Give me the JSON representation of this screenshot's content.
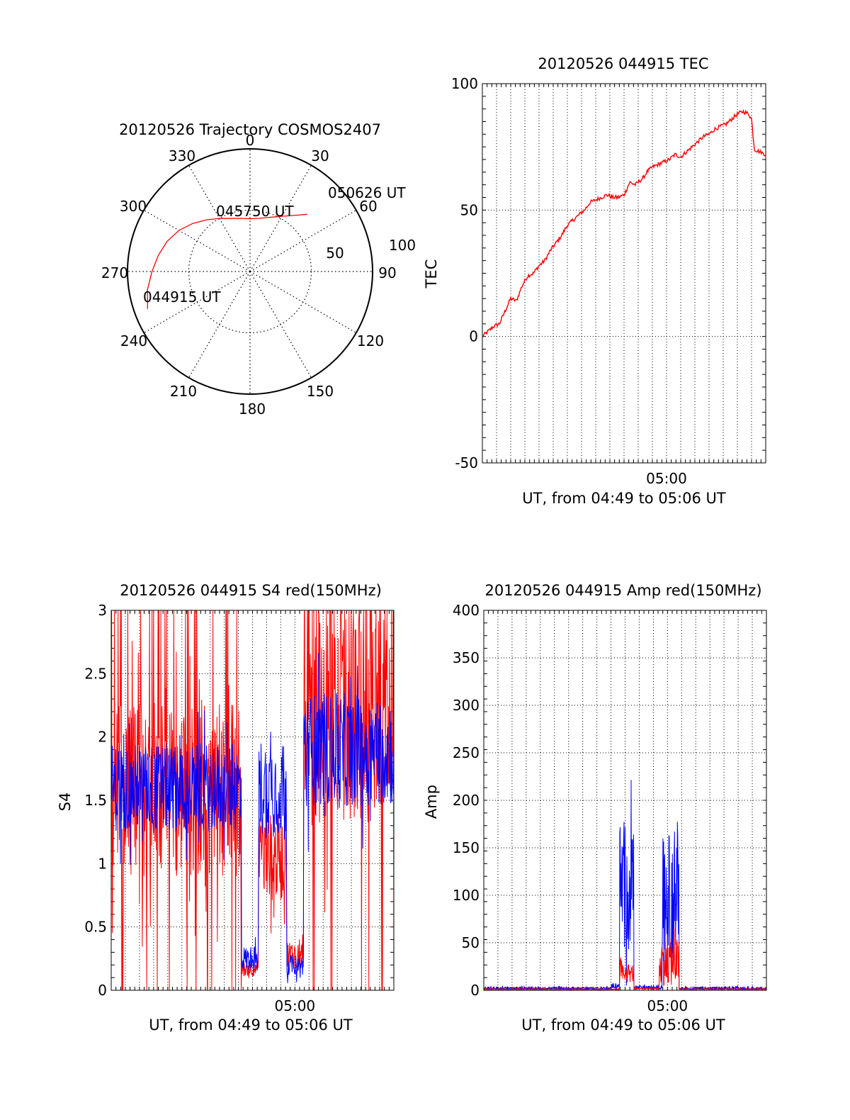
{
  "colors": {
    "red": "#ff0000",
    "blue": "#0000ff",
    "axis": "#000000",
    "grid": "#000000"
  },
  "chart_data": [
    {
      "id": "polar",
      "type": "scatter",
      "title": "20120526 Trajectory COSMOS2407",
      "azimuth_labels": [
        "0",
        "30",
        "60",
        "90",
        "120",
        "150",
        "180",
        "210",
        "240",
        "270",
        "300",
        "330"
      ],
      "radial_labels": [
        "50",
        "100"
      ],
      "rlim": [
        0,
        100
      ],
      "grid": true,
      "track": {
        "color": "red",
        "points": [
          [
            250,
            89
          ],
          [
            260,
            85
          ],
          [
            270,
            80
          ],
          [
            280,
            76
          ],
          [
            290,
            72
          ],
          [
            300,
            67
          ],
          [
            310,
            61
          ],
          [
            320,
            55
          ],
          [
            330,
            50
          ],
          [
            340,
            46
          ],
          [
            350,
            44
          ],
          [
            0,
            43
          ],
          [
            10,
            44
          ],
          [
            20,
            47
          ],
          [
            30,
            52
          ],
          [
            40,
            60
          ],
          [
            45,
            66
          ]
        ]
      },
      "annotations": [
        {
          "text": "050626 UT",
          "az": 45,
          "r": 66
        },
        {
          "text": "045750 UT",
          "az": 0,
          "r": 43
        },
        {
          "text": "044915 UT",
          "az": 250,
          "r": 89
        }
      ]
    },
    {
      "id": "tec",
      "type": "line",
      "title": "20120526 044915 TEC",
      "xlabel": "UT, from 04:49 to 05:06 UT",
      "ylabel": "TEC",
      "x_tick_label": "05:00",
      "x_tick_at_fraction": 0.65,
      "ylim": [
        -50,
        100
      ],
      "yticks": [
        "-50",
        "0",
        "50",
        "100"
      ],
      "grid": true,
      "series": [
        {
          "color": "red",
          "x": [
            0,
            0.02,
            0.04,
            0.06,
            0.08,
            0.1,
            0.12,
            0.14,
            0.16,
            0.18,
            0.2,
            0.22,
            0.24,
            0.26,
            0.28,
            0.3,
            0.32,
            0.34,
            0.36,
            0.38,
            0.4,
            0.42,
            0.44,
            0.46,
            0.48,
            0.5,
            0.52,
            0.54,
            0.56,
            0.57,
            0.58,
            0.6,
            0.62,
            0.64,
            0.66,
            0.68,
            0.7,
            0.72,
            0.74,
            0.76,
            0.78,
            0.8,
            0.82,
            0.84,
            0.86,
            0.88,
            0.9,
            0.92,
            0.94,
            0.95,
            0.96,
            0.98,
            1.0
          ],
          "y": [
            0,
            2,
            4,
            5,
            10,
            15,
            14,
            20,
            24,
            25,
            28,
            30,
            34,
            37,
            40,
            44,
            46,
            48,
            50,
            53,
            54,
            55,
            56,
            55,
            55,
            56,
            61,
            60,
            62,
            63,
            65,
            67,
            68,
            69,
            70,
            72,
            71,
            73,
            75,
            77,
            79,
            80,
            82,
            83,
            84,
            86,
            88,
            89,
            88,
            86,
            74,
            73,
            72
          ]
        }
      ]
    },
    {
      "id": "s4",
      "type": "line",
      "title": "20120526 044915 S4 red(150MHz)",
      "xlabel": "UT, from 04:49 to 05:06 UT",
      "ylabel": "S4",
      "x_tick_label": "05:00",
      "x_tick_at_fraction": 0.65,
      "ylim": [
        0,
        3
      ],
      "yticks": [
        "0",
        "0.5",
        "1",
        "1.5",
        "2",
        "2.5",
        "3"
      ],
      "grid": true,
      "series": [
        {
          "color": "red",
          "segments": [
            {
              "x": [
                0,
                0.46
              ],
              "mean": 1.6,
              "amp": 0.7,
              "dropouts": true
            },
            {
              "x": [
                0.46,
                0.52
              ],
              "mean": 0.17,
              "amp": 0.06,
              "dropouts": false
            },
            {
              "x": [
                0.52,
                0.62
              ],
              "mean": 1.05,
              "amp": 0.35,
              "dropouts": false
            },
            {
              "x": [
                0.62,
                0.68
              ],
              "mean": 0.28,
              "amp": 0.12,
              "dropouts": false
            },
            {
              "x": [
                0.68,
                1.0
              ],
              "mean": 2.2,
              "amp": 0.9,
              "dropouts": true
            }
          ]
        },
        {
          "color": "blue",
          "segments": [
            {
              "x": [
                0,
                0.46
              ],
              "mean": 1.6,
              "amp": 0.35,
              "dropouts": false
            },
            {
              "x": [
                0.46,
                0.52
              ],
              "mean": 0.25,
              "amp": 0.1,
              "dropouts": false
            },
            {
              "x": [
                0.52,
                0.62
              ],
              "mean": 1.6,
              "amp": 0.4,
              "dropouts": false
            },
            {
              "x": [
                0.62,
                0.68
              ],
              "mean": 0.2,
              "amp": 0.08,
              "dropouts": false
            },
            {
              "x": [
                0.68,
                1.0
              ],
              "mean": 1.9,
              "amp": 0.45,
              "dropouts": false
            }
          ]
        }
      ]
    },
    {
      "id": "amp",
      "type": "line",
      "title": "20120526 044915 Amp red(150MHz)",
      "xlabel": "UT, from 04:49 to 05:06 UT",
      "ylabel": "Amp",
      "x_tick_label": "05:00",
      "x_tick_at_fraction": 0.65,
      "ylim": [
        0,
        400
      ],
      "yticks": [
        "0",
        "50",
        "100",
        "150",
        "200",
        "250",
        "300",
        "350",
        "400"
      ],
      "grid": true,
      "series": [
        {
          "color": "blue",
          "segments": [
            {
              "x": [
                0,
                0.45
              ],
              "mean": 2,
              "amp": 1.5
            },
            {
              "x": [
                0.45,
                0.48
              ],
              "mean": 5,
              "amp": 3
            },
            {
              "x": [
                0.48,
                0.53
              ],
              "mean": 110,
              "amp": 70
            },
            {
              "x": [
                0.53,
                0.63
              ],
              "mean": 3,
              "amp": 2
            },
            {
              "x": [
                0.63,
                0.69
              ],
              "mean": 95,
              "amp": 70
            },
            {
              "x": [
                0.69,
                1.0
              ],
              "mean": 2,
              "amp": 1.5
            }
          ]
        },
        {
          "color": "red",
          "segments": [
            {
              "x": [
                0,
                0.48
              ],
              "mean": 1,
              "amp": 0.8
            },
            {
              "x": [
                0.48,
                0.53
              ],
              "mean": 18,
              "amp": 10
            },
            {
              "x": [
                0.53,
                0.62
              ],
              "mean": 2,
              "amp": 1
            },
            {
              "x": [
                0.62,
                0.69
              ],
              "mean": 30,
              "amp": 25
            },
            {
              "x": [
                0.69,
                1.0
              ],
              "mean": 1,
              "amp": 0.8
            }
          ]
        }
      ]
    }
  ]
}
